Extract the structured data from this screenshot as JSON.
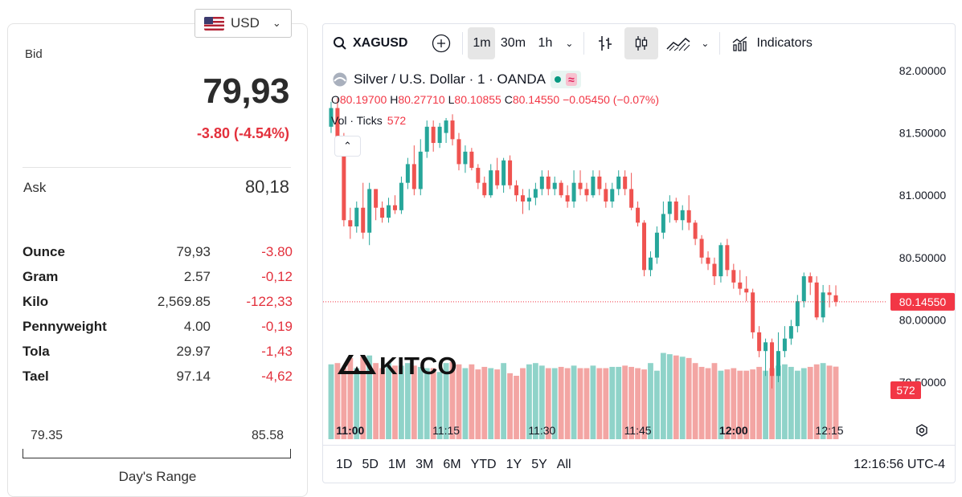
{
  "quote": {
    "currency": "USD",
    "bid_label": "Bid",
    "bid": "79,93",
    "bid_change": "-3.80 (-4.54%)",
    "ask_label": "Ask",
    "ask": "80,18",
    "units": [
      {
        "name": "Ounce",
        "price": "79,93",
        "change": "-3.80"
      },
      {
        "name": "Gram",
        "price": "2.57",
        "change": "-0,12"
      },
      {
        "name": "Kilo",
        "price": "2,569.85",
        "change": "-122,33"
      },
      {
        "name": "Pennyweight",
        "price": "4.00",
        "change": "-0,19"
      },
      {
        "name": "Tola",
        "price": "29.97",
        "change": "-1,43"
      },
      {
        "name": "Tael",
        "price": "97.14",
        "change": "-4,62"
      }
    ],
    "range_low": "79.35",
    "range_high": "85.58",
    "range_title": "Day's Range"
  },
  "chart_toolbar": {
    "symbol": "XAGUSD",
    "intervals": [
      "1m",
      "30m",
      "1h"
    ],
    "active_interval": "1m",
    "indicators_label": "Indicators"
  },
  "legend": {
    "title": "Silver / U.S. Dollar · 1 · OANDA",
    "o_key": "O",
    "o": "80.19700",
    "h_key": "H",
    "h": "80.27710",
    "l_key": "L",
    "l": "80.10855",
    "c_key": "C",
    "c": "80.14550",
    "change": "−0.05450 (−0.07%)",
    "vol_label": "Vol · Ticks",
    "vol_value": "572"
  },
  "watermark": "KITCO",
  "bottom_bar": {
    "ranges": [
      "1D",
      "5D",
      "1M",
      "3M",
      "6M",
      "YTD",
      "1Y",
      "5Y",
      "All"
    ],
    "clock": "12:16:56 UTC-4"
  },
  "colors": {
    "up": "#26a69a",
    "down": "#ef5350",
    "up_vol": "#8fd3c9",
    "down_vol": "#f3a5a3",
    "accent_red": "#e3303c"
  },
  "chart_data": {
    "type": "candlestick",
    "title": "Silver / U.S. Dollar · 1 · OANDA",
    "x_ticks": [
      "11:00",
      "11:15",
      "11:30",
      "11:45",
      "12:00",
      "12:15"
    ],
    "y_ticks": [
      "82.00000",
      "81.50000",
      "81.00000",
      "80.50000",
      "80.00000",
      "79.50000"
    ],
    "ylim": [
      79.35,
      82.0
    ],
    "last_price": "80.14550",
    "last_volume": "572",
    "candles": [
      {
        "t": "10:57",
        "o": 81.55,
        "h": 81.75,
        "l": 81.5,
        "c": 81.7,
        "v": 590
      },
      {
        "t": "10:58",
        "o": 81.7,
        "h": 81.78,
        "l": 81.4,
        "c": 81.45,
        "v": 600
      },
      {
        "t": "10:59",
        "o": 81.45,
        "h": 81.5,
        "l": 80.75,
        "c": 80.8,
        "v": 560
      },
      {
        "t": "11:00",
        "o": 80.8,
        "h": 80.9,
        "l": 80.65,
        "c": 80.75,
        "v": 640
      },
      {
        "t": "11:01",
        "o": 80.75,
        "h": 80.95,
        "l": 80.7,
        "c": 80.9,
        "v": 560
      },
      {
        "t": "11:02",
        "o": 80.9,
        "h": 81.1,
        "l": 80.65,
        "c": 80.7,
        "v": 650
      },
      {
        "t": "11:03",
        "o": 80.7,
        "h": 81.1,
        "l": 80.6,
        "c": 81.05,
        "v": 660
      },
      {
        "t": "11:04",
        "o": 81.05,
        "h": 81.05,
        "l": 80.8,
        "c": 80.9,
        "v": 600
      },
      {
        "t": "11:05",
        "o": 80.9,
        "h": 80.95,
        "l": 80.78,
        "c": 80.82,
        "v": 560
      },
      {
        "t": "11:06",
        "o": 80.82,
        "h": 80.98,
        "l": 80.78,
        "c": 80.92,
        "v": 600
      },
      {
        "t": "11:07",
        "o": 80.92,
        "h": 81.0,
        "l": 80.85,
        "c": 80.88,
        "v": 580
      },
      {
        "t": "11:08",
        "o": 80.88,
        "h": 81.15,
        "l": 80.85,
        "c": 81.1,
        "v": 580
      },
      {
        "t": "11:09",
        "o": 81.1,
        "h": 81.3,
        "l": 81.05,
        "c": 81.25,
        "v": 600
      },
      {
        "t": "11:10",
        "o": 81.25,
        "h": 81.4,
        "l": 81.0,
        "c": 81.05,
        "v": 580
      },
      {
        "t": "11:11",
        "o": 81.05,
        "h": 81.45,
        "l": 81.0,
        "c": 81.35,
        "v": 570
      },
      {
        "t": "11:12",
        "o": 81.35,
        "h": 81.6,
        "l": 81.3,
        "c": 81.55,
        "v": 560
      },
      {
        "t": "11:13",
        "o": 81.55,
        "h": 81.6,
        "l": 81.35,
        "c": 81.42,
        "v": 560
      },
      {
        "t": "11:14",
        "o": 81.42,
        "h": 81.58,
        "l": 81.38,
        "c": 81.55,
        "v": 530
      },
      {
        "t": "11:15",
        "o": 81.5,
        "h": 81.62,
        "l": 81.42,
        "c": 81.6,
        "v": 600
      },
      {
        "t": "11:16",
        "o": 81.6,
        "h": 81.65,
        "l": 81.4,
        "c": 81.45,
        "v": 610
      },
      {
        "t": "11:17",
        "o": 81.45,
        "h": 81.5,
        "l": 81.2,
        "c": 81.25,
        "v": 590
      },
      {
        "t": "11:18",
        "o": 81.25,
        "h": 81.4,
        "l": 81.18,
        "c": 81.35,
        "v": 560
      },
      {
        "t": "11:19",
        "o": 81.35,
        "h": 81.38,
        "l": 81.2,
        "c": 81.22,
        "v": 590
      },
      {
        "t": "11:20",
        "o": 81.22,
        "h": 81.25,
        "l": 81.05,
        "c": 81.1,
        "v": 550
      },
      {
        "t": "11:21",
        "o": 81.1,
        "h": 81.15,
        "l": 80.98,
        "c": 81.0,
        "v": 570
      },
      {
        "t": "11:22",
        "o": 81.0,
        "h": 81.25,
        "l": 80.98,
        "c": 81.2,
        "v": 560
      },
      {
        "t": "11:23",
        "o": 81.2,
        "h": 81.3,
        "l": 81.05,
        "c": 81.08,
        "v": 550
      },
      {
        "t": "11:24",
        "o": 81.08,
        "h": 81.3,
        "l": 81.02,
        "c": 81.28,
        "v": 600
      },
      {
        "t": "11:25",
        "o": 81.28,
        "h": 81.32,
        "l": 81.05,
        "c": 81.08,
        "v": 520
      },
      {
        "t": "11:26",
        "o": 81.08,
        "h": 81.12,
        "l": 80.95,
        "c": 81.0,
        "v": 500
      },
      {
        "t": "11:27",
        "o": 81.0,
        "h": 81.05,
        "l": 80.85,
        "c": 80.95,
        "v": 560
      },
      {
        "t": "11:28",
        "o": 80.95,
        "h": 81.05,
        "l": 80.88,
        "c": 80.98,
        "v": 590
      },
      {
        "t": "11:29",
        "o": 80.98,
        "h": 81.1,
        "l": 80.92,
        "c": 81.05,
        "v": 600
      },
      {
        "t": "11:30",
        "o": 81.05,
        "h": 81.2,
        "l": 81.0,
        "c": 81.15,
        "v": 580
      },
      {
        "t": "11:31",
        "o": 81.15,
        "h": 81.2,
        "l": 81.0,
        "c": 81.05,
        "v": 560
      },
      {
        "t": "11:32",
        "o": 81.05,
        "h": 81.15,
        "l": 81.0,
        "c": 81.1,
        "v": 560
      },
      {
        "t": "11:33",
        "o": 81.1,
        "h": 81.12,
        "l": 80.98,
        "c": 81.0,
        "v": 570
      },
      {
        "t": "11:34",
        "o": 81.0,
        "h": 81.08,
        "l": 80.9,
        "c": 80.95,
        "v": 560
      },
      {
        "t": "11:35",
        "o": 80.95,
        "h": 81.2,
        "l": 80.9,
        "c": 81.1,
        "v": 580
      },
      {
        "t": "11:36",
        "o": 81.1,
        "h": 81.2,
        "l": 81.0,
        "c": 81.05,
        "v": 560
      },
      {
        "t": "11:37",
        "o": 81.05,
        "h": 81.1,
        "l": 80.95,
        "c": 81.0,
        "v": 560
      },
      {
        "t": "11:38",
        "o": 81.0,
        "h": 81.2,
        "l": 80.98,
        "c": 81.15,
        "v": 580
      },
      {
        "t": "11:39",
        "o": 81.15,
        "h": 81.2,
        "l": 81.0,
        "c": 81.05,
        "v": 560
      },
      {
        "t": "11:40",
        "o": 81.05,
        "h": 81.1,
        "l": 80.9,
        "c": 80.95,
        "v": 560
      },
      {
        "t": "11:41",
        "o": 80.95,
        "h": 81.1,
        "l": 80.9,
        "c": 81.05,
        "v": 570
      },
      {
        "t": "11:42",
        "o": 81.05,
        "h": 81.2,
        "l": 81.0,
        "c": 81.15,
        "v": 570
      },
      {
        "t": "11:43",
        "o": 81.15,
        "h": 81.2,
        "l": 81.0,
        "c": 81.05,
        "v": 580
      },
      {
        "t": "11:44",
        "o": 81.05,
        "h": 81.18,
        "l": 80.88,
        "c": 80.9,
        "v": 570
      },
      {
        "t": "11:45",
        "o": 80.9,
        "h": 80.95,
        "l": 80.75,
        "c": 80.78,
        "v": 560
      },
      {
        "t": "11:46",
        "o": 80.78,
        "h": 80.8,
        "l": 80.35,
        "c": 80.4,
        "v": 550
      },
      {
        "t": "11:47",
        "o": 80.4,
        "h": 80.55,
        "l": 80.35,
        "c": 80.5,
        "v": 600
      },
      {
        "t": "11:48",
        "o": 80.5,
        "h": 80.75,
        "l": 80.45,
        "c": 80.7,
        "v": 540
      },
      {
        "t": "11:49",
        "o": 80.7,
        "h": 80.95,
        "l": 80.65,
        "c": 80.85,
        "v": 680
      },
      {
        "t": "11:50",
        "o": 80.85,
        "h": 81.0,
        "l": 80.78,
        "c": 80.95,
        "v": 670
      },
      {
        "t": "11:51",
        "o": 80.95,
        "h": 80.98,
        "l": 80.78,
        "c": 80.8,
        "v": 660
      },
      {
        "t": "11:52",
        "o": 80.8,
        "h": 80.92,
        "l": 80.72,
        "c": 80.88,
        "v": 650
      },
      {
        "t": "11:53",
        "o": 80.88,
        "h": 81.0,
        "l": 80.72,
        "c": 80.78,
        "v": 640
      },
      {
        "t": "11:54",
        "o": 80.78,
        "h": 80.8,
        "l": 80.6,
        "c": 80.65,
        "v": 600
      },
      {
        "t": "11:55",
        "o": 80.65,
        "h": 80.68,
        "l": 80.45,
        "c": 80.5,
        "v": 570
      },
      {
        "t": "11:56",
        "o": 80.5,
        "h": 80.55,
        "l": 80.4,
        "c": 80.45,
        "v": 560
      },
      {
        "t": "11:57",
        "o": 80.45,
        "h": 80.5,
        "l": 80.28,
        "c": 80.35,
        "v": 600
      },
      {
        "t": "11:58",
        "o": 80.35,
        "h": 80.62,
        "l": 80.3,
        "c": 80.6,
        "v": 540
      },
      {
        "t": "11:59",
        "o": 80.6,
        "h": 80.65,
        "l": 80.35,
        "c": 80.4,
        "v": 550
      },
      {
        "t": "12:00",
        "o": 80.4,
        "h": 80.45,
        "l": 80.25,
        "c": 80.3,
        "v": 560
      },
      {
        "t": "12:01",
        "o": 80.3,
        "h": 80.4,
        "l": 80.2,
        "c": 80.25,
        "v": 540
      },
      {
        "t": "12:02",
        "o": 80.25,
        "h": 80.35,
        "l": 80.15,
        "c": 80.22,
        "v": 540
      },
      {
        "t": "12:03",
        "o": 80.22,
        "h": 80.25,
        "l": 79.85,
        "c": 79.9,
        "v": 550
      },
      {
        "t": "12:04",
        "o": 79.9,
        "h": 79.95,
        "l": 79.7,
        "c": 79.75,
        "v": 570
      },
      {
        "t": "12:05",
        "o": 79.75,
        "h": 79.85,
        "l": 79.55,
        "c": 79.82,
        "v": 540
      },
      {
        "t": "12:06",
        "o": 79.82,
        "h": 79.85,
        "l": 79.45,
        "c": 79.55,
        "v": 560
      },
      {
        "t": "12:07",
        "o": 79.55,
        "h": 79.9,
        "l": 79.5,
        "c": 79.75,
        "v": 580
      },
      {
        "t": "12:08",
        "o": 79.75,
        "h": 79.95,
        "l": 79.7,
        "c": 79.85,
        "v": 590
      },
      {
        "t": "12:09",
        "o": 79.85,
        "h": 80.0,
        "l": 79.8,
        "c": 79.95,
        "v": 570
      },
      {
        "t": "12:10",
        "o": 79.95,
        "h": 80.2,
        "l": 79.9,
        "c": 80.15,
        "v": 540
      },
      {
        "t": "12:11",
        "o": 80.15,
        "h": 80.38,
        "l": 80.1,
        "c": 80.35,
        "v": 560
      },
      {
        "t": "12:12",
        "o": 80.35,
        "h": 80.38,
        "l": 80.2,
        "c": 80.3,
        "v": 570
      },
      {
        "t": "12:13",
        "o": 80.3,
        "h": 80.35,
        "l": 80.0,
        "c": 80.02,
        "v": 590
      },
      {
        "t": "12:14",
        "o": 80.02,
        "h": 80.28,
        "l": 79.98,
        "c": 80.22,
        "v": 600
      },
      {
        "t": "12:15",
        "o": 80.22,
        "h": 80.28,
        "l": 80.1,
        "c": 80.2,
        "v": 580
      },
      {
        "t": "12:16",
        "o": 80.197,
        "h": 80.2771,
        "l": 80.10855,
        "c": 80.1455,
        "v": 572
      }
    ]
  }
}
